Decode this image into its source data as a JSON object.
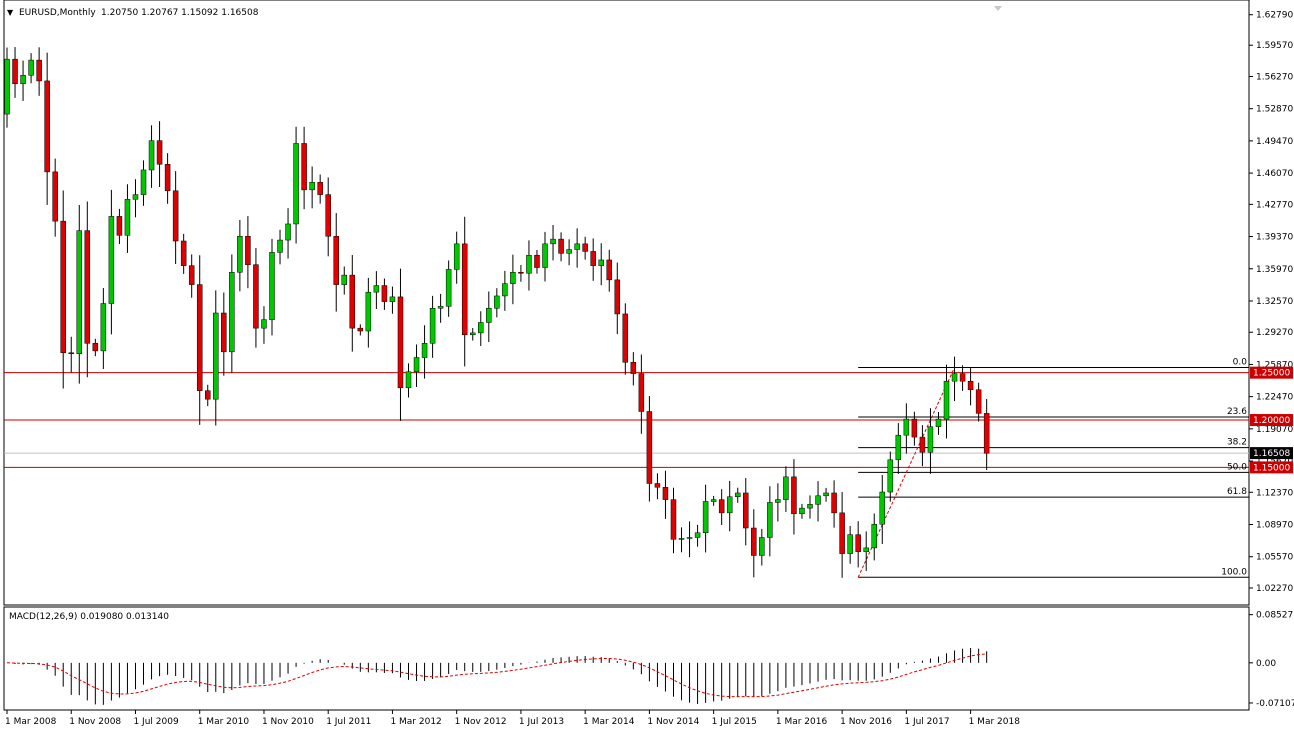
{
  "header": {
    "symbol": "EURUSD,Monthly",
    "ohlc": "1.20750 1.20767 1.15092 1.16508"
  },
  "macd": {
    "label": "MACD(12,26,9) 0.019080 0.013140",
    "axis_labels": [
      "0.085271",
      "0.00",
      "-0.071077"
    ]
  },
  "colors": {
    "bull": "#00c800",
    "bear": "#e00000",
    "level": "#cc0000",
    "fib": "#000000",
    "signal": "#e00000",
    "current_price_bg": "#000000"
  },
  "chart_data": {
    "type": "candlestick",
    "price_axis": {
      "ylim": [
        1.01,
        1.635
      ],
      "ticks": [
        "1.62790",
        "1.59570",
        "1.56270",
        "1.52870",
        "1.49470",
        "1.46070",
        "1.42770",
        "1.39370",
        "1.35970",
        "1.32570",
        "1.29270",
        "1.25870",
        "1.22470",
        "1.19070",
        "1.15670",
        "1.12370",
        "1.08970",
        "1.05570",
        "1.02270"
      ]
    },
    "time_axis": {
      "ticks": [
        {
          "label": "1 Mar 2008",
          "index": 0
        },
        {
          "label": "1 Nov 2008",
          "index": 8
        },
        {
          "label": "1 Jul 2009",
          "index": 16
        },
        {
          "label": "1 Mar 2010",
          "index": 24
        },
        {
          "label": "1 Nov 2010",
          "index": 32
        },
        {
          "label": "1 Jul 2011",
          "index": 40
        },
        {
          "label": "1 Mar 2012",
          "index": 48
        },
        {
          "label": "1 Nov 2012",
          "index": 56
        },
        {
          "label": "1 Jul 2013",
          "index": 64
        },
        {
          "label": "1 Mar 2014",
          "index": 72
        },
        {
          "label": "1 Nov 2014",
          "index": 80
        },
        {
          "label": "1 Jul 2015",
          "index": 88
        },
        {
          "label": "1 Mar 2016",
          "index": 96
        },
        {
          "label": "1 Nov 2016",
          "index": 104
        },
        {
          "label": "1 Jul 2017",
          "index": 112
        },
        {
          "label": "1 Mar 2018",
          "index": 120
        }
      ]
    },
    "closes": [
      1.581,
      1.555,
      1.564,
      1.58,
      1.558,
      1.462,
      1.41,
      1.271,
      1.27,
      1.4,
      1.281,
      1.273,
      1.323,
      1.415,
      1.395,
      1.433,
      1.438,
      1.464,
      1.495,
      1.47,
      1.442,
      1.389,
      1.363,
      1.343,
      1.231,
      1.222,
      1.313,
      1.272,
      1.356,
      1.394,
      1.364,
      1.297,
      1.306,
      1.377,
      1.39,
      1.407,
      1.492,
      1.443,
      1.451,
      1.438,
      1.394,
      1.343,
      1.353,
      1.297,
      1.294,
      1.335,
      1.342,
      1.325,
      1.33,
      1.234,
      1.251,
      1.266,
      1.281,
      1.318,
      1.32,
      1.359,
      1.386,
      1.29,
      1.292,
      1.303,
      1.318,
      1.331,
      1.344,
      1.356,
      1.355,
      1.374,
      1.361,
      1.386,
      1.391,
      1.376,
      1.38,
      1.386,
      1.378,
      1.363,
      1.369,
      1.348,
      1.312,
      1.261,
      1.249,
      1.209,
      1.133,
      1.129,
      1.116,
      1.074,
      1.075,
      1.076,
      1.081,
      1.114,
      1.116,
      1.102,
      1.119,
      1.123,
      1.086,
      1.057,
      1.076,
      1.113,
      1.116,
      1.14,
      1.101,
      1.107,
      1.111,
      1.12,
      1.123,
      1.102,
      1.059,
      1.079,
      1.061,
      1.065,
      1.09,
      1.124,
      1.158,
      1.184,
      1.201,
      1.182,
      1.166,
      1.193,
      1.201,
      1.241,
      1.249,
      1.241,
      1.232,
      1.207,
      1.165
    ],
    "levels": [
      {
        "price": 1.25,
        "label": "1.25000"
      },
      {
        "price": 1.2,
        "label": "1.20000"
      },
      {
        "price": 1.15,
        "label": "1.15000"
      }
    ],
    "current_price": {
      "price": 1.16508,
      "label": "1.16508"
    },
    "fibonacci": {
      "start_index": 106,
      "low": 1.034,
      "high": 1.2555,
      "levels": [
        {
          "ratio": 0.0,
          "label": "0.0"
        },
        {
          "ratio": 0.236,
          "label": "23.6"
        },
        {
          "ratio": 0.382,
          "label": "38.2"
        },
        {
          "ratio": 0.5,
          "label": "50.0"
        },
        {
          "ratio": 0.618,
          "label": "61.8"
        },
        {
          "ratio": 1.0,
          "label": "100.0"
        }
      ]
    },
    "macd_ylim": [
      -0.08,
      0.09
    ]
  }
}
